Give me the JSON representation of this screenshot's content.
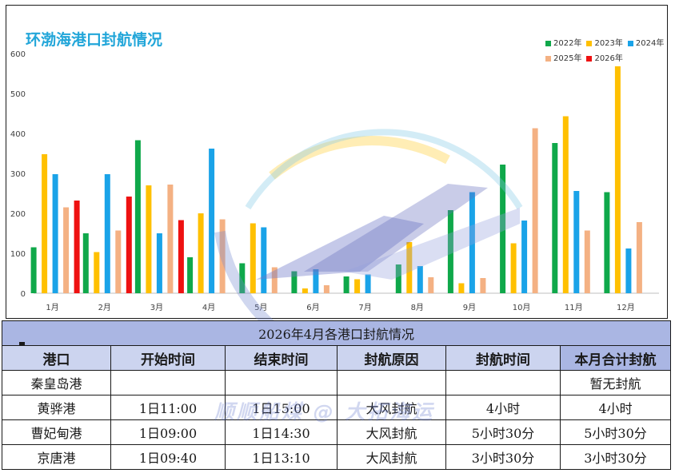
{
  "chart_data": {
    "type": "bar",
    "title": "环渤海港口封航情况",
    "categories": [
      "1月",
      "2月",
      "3月",
      "4月",
      "5月",
      "6月",
      "7月",
      "8月",
      "9月",
      "10月",
      "11月",
      "12月"
    ],
    "ylim": [
      0,
      600
    ],
    "yticks": [
      0,
      100,
      200,
      300,
      400,
      500,
      600
    ],
    "grid": false,
    "legend_position": "top-right",
    "series": [
      {
        "name": "2022年",
        "color": "#0fa84a",
        "values": [
          115,
          150,
          383,
          90,
          75,
          55,
          42,
          72,
          208,
          322,
          376,
          253
        ]
      },
      {
        "name": "2023年",
        "color": "#ffc000",
        "values": [
          348,
          103,
          270,
          200,
          175,
          12,
          35,
          128,
          25,
          125,
          443,
          568
        ]
      },
      {
        "name": "2024年",
        "color": "#1aa3e8",
        "values": [
          298,
          298,
          150,
          362,
          165,
          60,
          47,
          68,
          253,
          182,
          256,
          112
        ]
      },
      {
        "name": "2025年",
        "color": "#f4b183",
        "values": [
          215,
          157,
          272,
          185,
          65,
          20,
          null,
          40,
          38,
          413,
          157,
          178
        ]
      },
      {
        "name": "2026年",
        "color": "#ee1111",
        "values": [
          232,
          242,
          183,
          null,
          null,
          null,
          null,
          null,
          null,
          null,
          null,
          null
        ]
      }
    ]
  },
  "table": {
    "title": "2026年4月各港口封航情况",
    "headers": [
      "港口",
      "开始时间",
      "结束时间",
      "封航原因",
      "封航时间",
      "本月合计封航"
    ],
    "rows": [
      [
        "秦皇岛港",
        "",
        "",
        "",
        "",
        "暂无封航"
      ],
      [
        "黄骅港",
        "1日11:00",
        "1日15:00",
        "大风封航",
        "4小时",
        "4小时"
      ],
      [
        "曹妃甸港",
        "1日09:00",
        "1日14:30",
        "大风封航",
        "5小时30分",
        "5小时30分"
      ],
      [
        "京唐港",
        "1日09:40",
        "1日13:10",
        "大风封航",
        "3小时30分",
        "3小时30分"
      ]
    ]
  },
  "watermark": "顺顺船煤 @ 大拓海运"
}
